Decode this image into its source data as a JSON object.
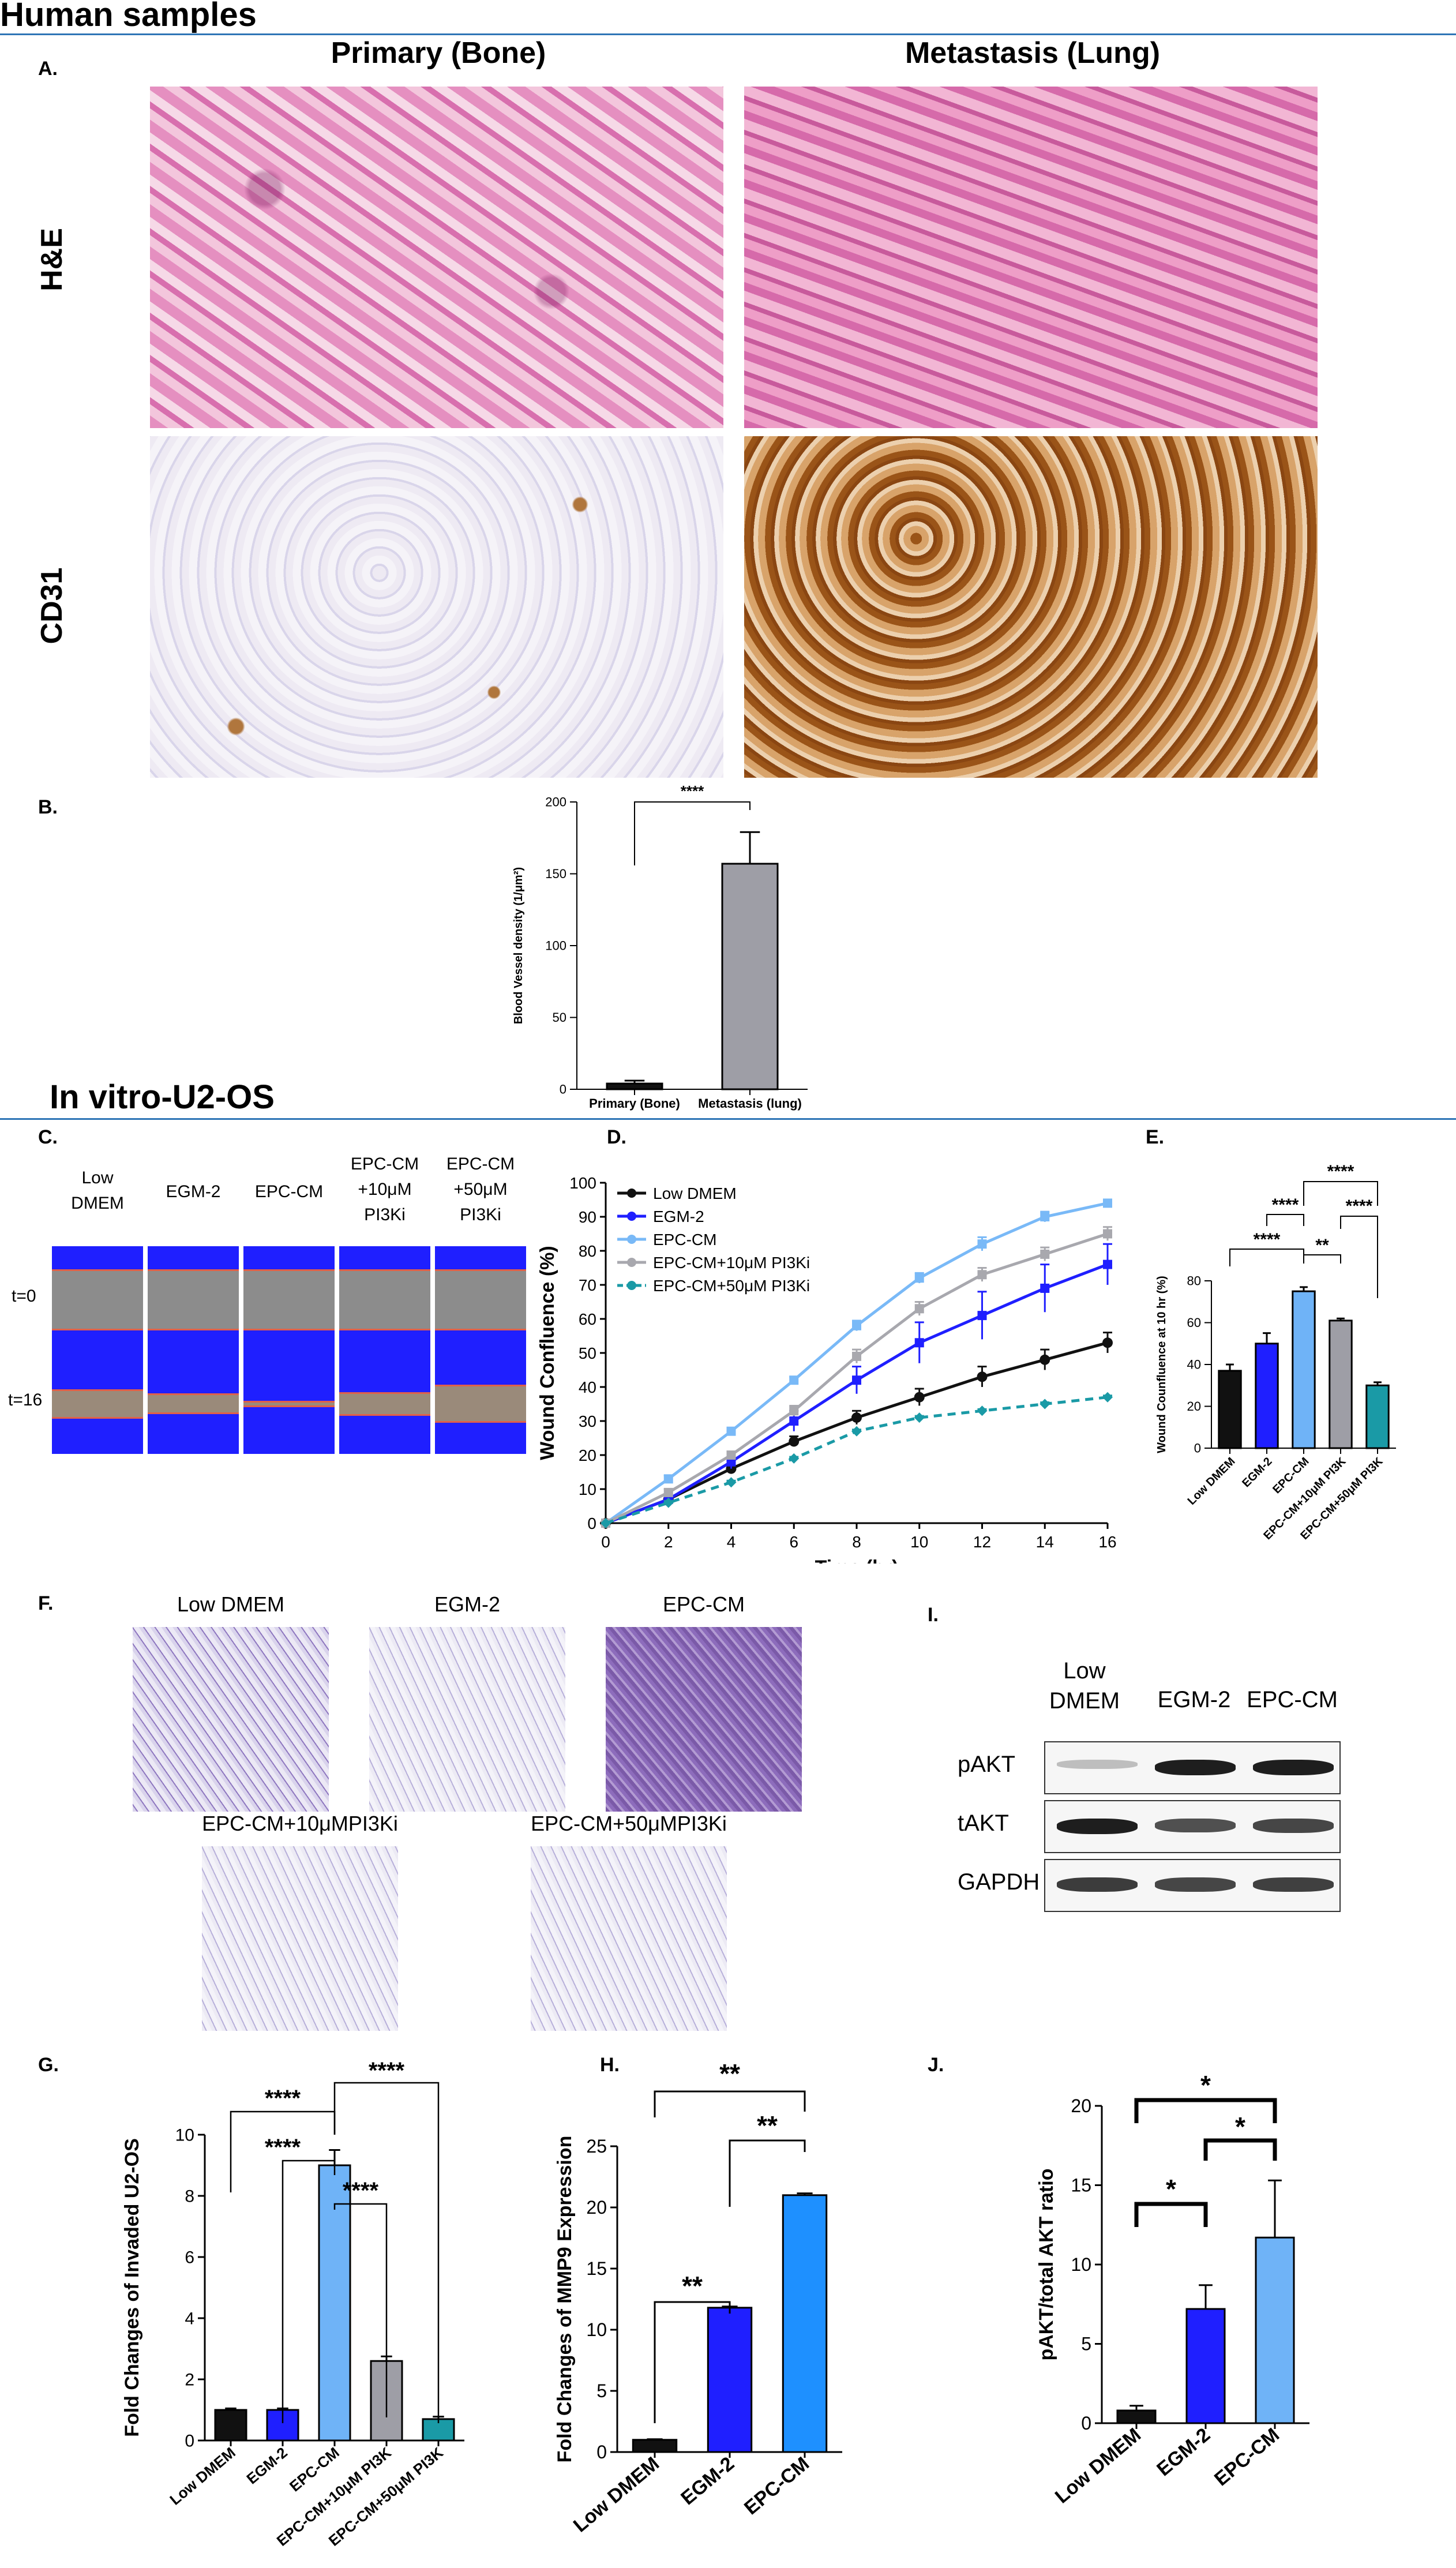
{
  "sections": {
    "human": "Human samples",
    "invitro": "In vitro-U2-OS"
  },
  "panels": {
    "A": "A.",
    "B": "B.",
    "C": "C.",
    "D": "D.",
    "E": "E.",
    "F": "F.",
    "G": "G.",
    "H": "H.",
    "I": "I.",
    "J": "J."
  },
  "panelA": {
    "col1": "Primary (Bone)",
    "col2": "Metastasis (Lung)",
    "row1": "H&E",
    "row2": "CD31"
  },
  "panelC": {
    "conditions": [
      "Low DMEM",
      "EGM-2",
      "EPC-CM",
      "EPC-CM +10μM PI3Ki",
      "EPC-CM +50μM PI3Ki"
    ],
    "cond_lines": [
      [
        "Low",
        "DMEM"
      ],
      [
        "EGM-2"
      ],
      [
        "EPC-CM"
      ],
      [
        "EPC-CM",
        "+10μM",
        "PI3Ki"
      ],
      [
        "EPC-CM",
        "+50μM",
        "PI3Ki"
      ]
    ],
    "t0": "t=0",
    "t16": "t=16",
    "wound_open": [
      1,
      1,
      1,
      1,
      1
    ],
    "wound_16": [
      0.45,
      0.3,
      0.05,
      0.35,
      0.6
    ]
  },
  "panelF": {
    "labels": [
      "Low DMEM",
      "EGM-2",
      "EPC-CM",
      "EPC-CM+10μMPI3Ki",
      "EPC-CM+50μMPI3Ki"
    ]
  },
  "panelI": {
    "columns": [
      [
        "Low",
        "DMEM"
      ],
      [
        "EGM-2"
      ],
      [
        "EPC-CM"
      ]
    ],
    "rows": [
      "pAKT",
      "tAKT",
      "GAPDH"
    ],
    "band_intensity": {
      "pAKT": [
        0.15,
        0.95,
        0.95
      ],
      "tAKT": [
        0.95,
        0.7,
        0.75
      ],
      "GAPDH": [
        0.8,
        0.75,
        0.78
      ]
    }
  },
  "colors": {
    "black": "#111111",
    "blue": "#1f1fff",
    "lightblue": "#6fb3f7",
    "gray": "#a0a0a8",
    "teal": "#1a9aa6"
  },
  "chart_data": [
    {
      "id": "B",
      "type": "bar",
      "categories": [
        "Primary (Bone)",
        "Metastasis (lung)"
      ],
      "values": [
        4,
        157
      ],
      "errors": [
        2,
        22
      ],
      "ylabel": "Blood Vessel density (1/μm²)",
      "ylim": [
        0,
        200
      ],
      "yticks": [
        0,
        50,
        100,
        150,
        200
      ],
      "bar_colors": [
        "#111111",
        "#9e9ea6"
      ],
      "significance": [
        {
          "from": 0,
          "to": 1,
          "label": "****"
        }
      ]
    },
    {
      "id": "D",
      "type": "line",
      "x": [
        0,
        2,
        4,
        6,
        8,
        10,
        12,
        14,
        16
      ],
      "xlabel": "Time (hr)",
      "ylabel": "Wound Confluence (%)",
      "xlim": [
        0,
        16
      ],
      "ylim": [
        0,
        100
      ],
      "xticks": [
        0,
        2,
        4,
        6,
        8,
        10,
        12,
        14,
        16
      ],
      "yticks": [
        0,
        10,
        20,
        30,
        40,
        50,
        60,
        70,
        80,
        90,
        100
      ],
      "legend": "top-left",
      "series": [
        {
          "name": "Low DMEM",
          "color": "#111111",
          "dashed": false,
          "values": [
            0,
            7,
            16,
            24,
            31,
            37,
            43,
            48,
            53
          ],
          "errors": [
            0,
            1,
            1.5,
            1.5,
            2,
            2.5,
            3,
            3,
            3
          ]
        },
        {
          "name": "EGM-2",
          "color": "#1f1fff",
          "dashed": false,
          "values": [
            0,
            7,
            18,
            30,
            42,
            53,
            61,
            69,
            76
          ],
          "errors": [
            0,
            1,
            2,
            3,
            4,
            6,
            7,
            7,
            6
          ]
        },
        {
          "name": "EPC-CM",
          "color": "#79b9f7",
          "dashed": false,
          "values": [
            0,
            13,
            27,
            42,
            58,
            72,
            82,
            90,
            94
          ],
          "errors": [
            0,
            1,
            1,
            1,
            1.5,
            1.5,
            2,
            1.5,
            1
          ]
        },
        {
          "name": "EPC-CM+10μM PI3Ki",
          "color": "#a8a8ae",
          "dashed": false,
          "values": [
            0,
            9,
            20,
            33,
            49,
            63,
            73,
            79,
            85
          ],
          "errors": [
            0,
            1,
            1,
            1.5,
            2,
            2,
            2,
            2,
            2
          ]
        },
        {
          "name": "EPC-CM+50μM PI3Ki",
          "color": "#1a9aa6",
          "dashed": true,
          "values": [
            0,
            6,
            12,
            19,
            27,
            31,
            33,
            35,
            37
          ],
          "errors": [
            0,
            0.5,
            0.5,
            0.5,
            0.5,
            0.5,
            0.5,
            0.5,
            0.5
          ]
        }
      ]
    },
    {
      "id": "E",
      "type": "bar",
      "categories": [
        "Low DMEM",
        "EGM-2",
        "EPC-CM",
        "EPC-CM+10μM PI3K",
        "EPC-CM+50μM PI3K"
      ],
      "values": [
        37,
        50,
        75,
        61,
        30
      ],
      "errors": [
        3,
        5,
        2,
        1,
        1.5
      ],
      "ylabel": "Wound Counfluence at 10 hr (%)",
      "ylim": [
        0,
        80
      ],
      "yticks": [
        0,
        20,
        40,
        60,
        80
      ],
      "bar_colors": [
        "#111111",
        "#1f1fff",
        "#6fb3f7",
        "#9e9ea6",
        "#1a9aa6"
      ],
      "significance": [
        {
          "from": 0,
          "to": 2,
          "label": "****"
        },
        {
          "from": 1,
          "to": 2,
          "label": "****"
        },
        {
          "from": 2,
          "to": 3,
          "label": "**"
        },
        {
          "from": 3,
          "to": 4,
          "label": "****"
        },
        {
          "from": 2,
          "to": 4,
          "label": "****"
        }
      ]
    },
    {
      "id": "G",
      "type": "bar",
      "categories": [
        "Low DMEM",
        "EGM-2",
        "EPC-CM",
        "EPC-CM+10μM PI3K",
        "EPC-CM+50μM PI3K"
      ],
      "values": [
        1,
        1,
        9,
        2.6,
        0.7
      ],
      "errors": [
        0.05,
        0.05,
        0.5,
        0.15,
        0.08
      ],
      "ylabel": "Fold Changes of Invaded U2-OS",
      "ylim": [
        0,
        10
      ],
      "yticks": [
        0,
        2,
        4,
        6,
        8,
        10
      ],
      "bar_colors": [
        "#111111",
        "#1f1fff",
        "#6fb3f7",
        "#9e9ea6",
        "#1a9aa6"
      ],
      "significance": [
        {
          "from": 0,
          "to": 2,
          "label": "****"
        },
        {
          "from": 1,
          "to": 2,
          "label": "****"
        },
        {
          "from": 2,
          "to": 3,
          "label": "****"
        },
        {
          "from": 2,
          "to": 4,
          "label": "****"
        }
      ]
    },
    {
      "id": "H",
      "type": "bar",
      "categories": [
        "Low DMEM",
        "EGM-2",
        "EPC-CM"
      ],
      "values": [
        1,
        11.8,
        21
      ],
      "errors": [
        0.05,
        0.1,
        0.15
      ],
      "ylabel": "Fold Changes of MMP9 Expression",
      "ylim": [
        0,
        25
      ],
      "yticks": [
        0,
        5,
        10,
        15,
        20,
        25
      ],
      "bar_colors": [
        "#111111",
        "#1f1fff",
        "#1e90ff"
      ],
      "significance": [
        {
          "from": 0,
          "to": 1,
          "label": "**"
        },
        {
          "from": 1,
          "to": 2,
          "label": "**"
        },
        {
          "from": 0,
          "to": 2,
          "label": "**"
        }
      ]
    },
    {
      "id": "J",
      "type": "bar",
      "categories": [
        "Low DMEM",
        "EGM-2",
        "EPC-CM"
      ],
      "values": [
        0.8,
        7.2,
        11.7
      ],
      "errors": [
        0.3,
        1.5,
        3.6
      ],
      "ylabel": "pAKT/total AKT ratio",
      "ylim": [
        0,
        20
      ],
      "yticks": [
        0,
        5,
        10,
        15,
        20
      ],
      "bar_colors": [
        "#111111",
        "#1f1fff",
        "#6fb3f7"
      ],
      "significance": [
        {
          "from": 0,
          "to": 1,
          "label": "*"
        },
        {
          "from": 1,
          "to": 2,
          "label": "*"
        },
        {
          "from": 0,
          "to": 2,
          "label": "*"
        }
      ]
    }
  ]
}
